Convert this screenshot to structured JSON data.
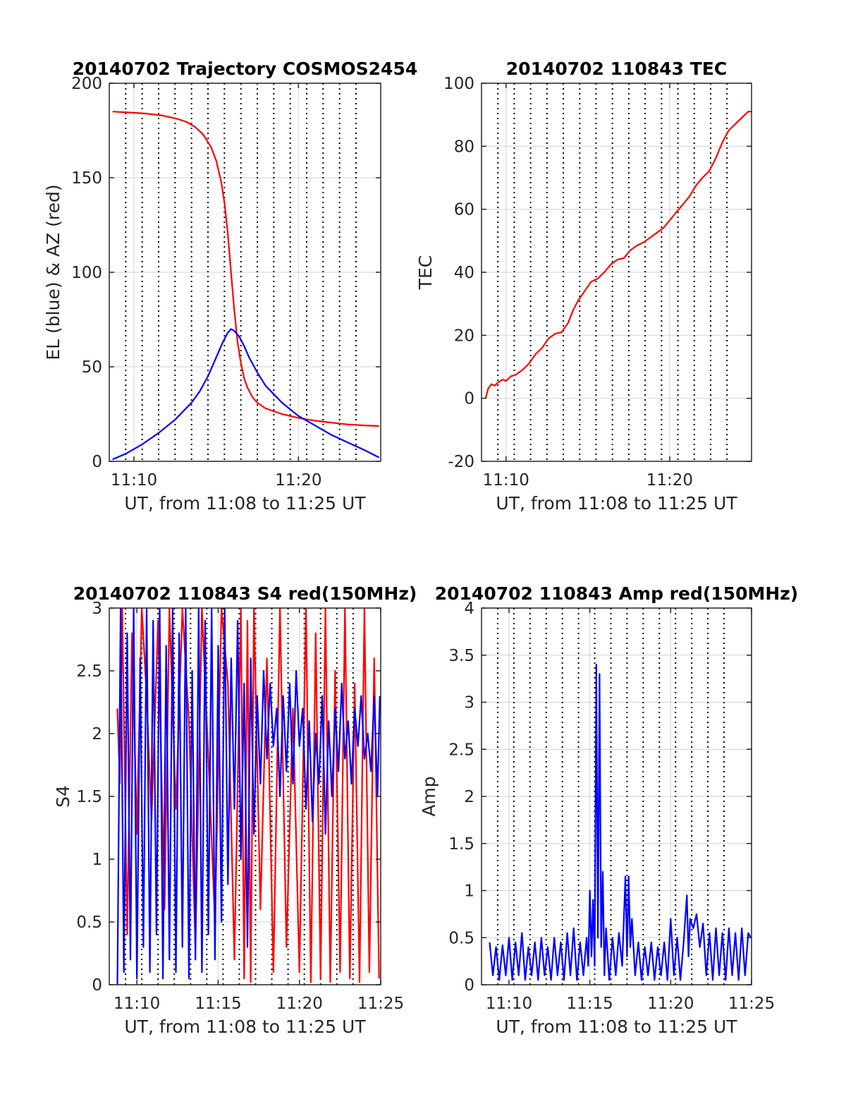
{
  "figure": {
    "colors": {
      "red": "#ff0000",
      "blue": "#0000ff",
      "grid": "#d9d9d9",
      "vline": "#000000",
      "axis": "#262626"
    }
  },
  "chart_data": [
    {
      "id": "trajectory",
      "type": "line",
      "title": "20140702 Trajectory COSMOS2454",
      "xlabel": "UT, from 11:08 to 11:25 UT",
      "ylabel": "EL (blue) & AZ (red)",
      "x_unit": "minutes after 11:00 UT",
      "xlim": [
        8.5,
        25.0
      ],
      "ylim": [
        0,
        200
      ],
      "xticks": [
        10,
        20
      ],
      "xtick_labels": [
        "11:10",
        "11:20"
      ],
      "yticks": [
        0,
        50,
        100,
        150,
        200
      ],
      "ytick_labels": [
        "0",
        "50",
        "100",
        "150",
        "200"
      ],
      "grid": true,
      "dotted_vlines": [
        9.5,
        10.5,
        11.5,
        12.5,
        13.5,
        14.5,
        15.5,
        16.5,
        17.5,
        18.5,
        19.5,
        20.5,
        21.5,
        22.5,
        23.5
      ],
      "series": [
        {
          "name": "AZ (red)",
          "color": "#ff0000",
          "x": [
            8.7,
            9.7,
            10.7,
            11.7,
            12.7,
            13.2,
            13.7,
            14.2,
            14.7,
            15.0,
            15.3,
            15.5,
            15.7,
            15.9,
            16.1,
            16.3,
            16.5,
            16.7,
            16.9,
            17.2,
            17.5,
            18.0,
            18.5,
            19.0,
            20.0,
            21.0,
            22.0,
            23.0,
            24.0,
            24.9
          ],
          "y": [
            185,
            184.5,
            184,
            183,
            181,
            179.5,
            177,
            173,
            166,
            159,
            148,
            137,
            121,
            100,
            80,
            63,
            52,
            44,
            39,
            34,
            31,
            28,
            26.5,
            25,
            23,
            21.5,
            20.5,
            19.5,
            19,
            18.7
          ]
        },
        {
          "name": "EL (blue)",
          "color": "#0000ff",
          "x": [
            8.7,
            9.5,
            10.5,
            11.5,
            12.5,
            13.5,
            14.0,
            14.5,
            15.0,
            15.4,
            15.7,
            15.9,
            16.1,
            16.4,
            16.7,
            17.0,
            17.5,
            18.0,
            19.0,
            20.0,
            21.0,
            22.0,
            23.0,
            24.0,
            24.9
          ],
          "y": [
            1,
            4,
            9,
            15,
            22,
            31,
            37,
            45,
            55,
            63,
            68,
            70,
            69,
            66,
            61,
            55,
            47,
            40,
            31,
            24,
            19,
            14,
            10,
            6,
            2
          ]
        }
      ]
    },
    {
      "id": "tec",
      "type": "line",
      "title": "20140702 110843 TEC",
      "xlabel": "UT, from 11:08 to 11:25 UT",
      "ylabel": "TEC",
      "x_unit": "minutes after 11:00 UT",
      "xlim": [
        8.5,
        25.0
      ],
      "ylim": [
        -20,
        100
      ],
      "xticks": [
        10,
        20
      ],
      "xtick_labels": [
        "11:10",
        "11:20"
      ],
      "yticks": [
        -20,
        0,
        20,
        40,
        60,
        80,
        100
      ],
      "ytick_labels": [
        "-20",
        "0",
        "20",
        "40",
        "60",
        "80",
        "100"
      ],
      "grid": true,
      "dotted_vlines": [
        9.5,
        10.5,
        11.5,
        12.5,
        13.5,
        14.5,
        15.5,
        16.5,
        17.5,
        18.5,
        19.5,
        20.5,
        21.5,
        22.5,
        23.5
      ],
      "series": [
        {
          "name": "TEC",
          "color": "#ff0000",
          "x": [
            8.75,
            8.9,
            9.1,
            9.3,
            9.5,
            9.8,
            10.0,
            10.3,
            10.6,
            11.0,
            11.4,
            11.8,
            12.2,
            12.6,
            13.0,
            13.4,
            13.8,
            14.1,
            14.4,
            14.8,
            15.2,
            15.6,
            16.0,
            16.4,
            16.8,
            17.2,
            17.6,
            18.0,
            18.4,
            18.8,
            19.2,
            19.6,
            20.0,
            20.4,
            20.8,
            21.2,
            21.6,
            22.0,
            22.4,
            22.8,
            23.2,
            23.6,
            24.0,
            24.4,
            24.8,
            25.0
          ],
          "y": [
            0,
            3,
            4.5,
            4,
            5,
            6,
            5.5,
            7,
            7.5,
            9,
            11,
            14,
            16,
            19,
            20.5,
            21,
            24,
            28,
            31,
            34,
            37,
            38,
            40,
            42.5,
            44,
            44.5,
            47,
            48.5,
            49.5,
            51,
            52.5,
            54,
            56.5,
            59,
            61.5,
            64,
            67.5,
            70,
            72,
            76,
            81,
            85,
            87,
            89,
            91,
            91
          ]
        }
      ]
    },
    {
      "id": "s4",
      "type": "line",
      "title": "20140702 110843 S4 red(150MHz)",
      "xlabel": "UT, from 11:08 to 11:25 UT",
      "ylabel": "S4",
      "x_unit": "minutes after 11:00 UT",
      "xlim": [
        8.3,
        25.0
      ],
      "ylim": [
        0,
        3
      ],
      "xticks": [
        10,
        15,
        20,
        25
      ],
      "xtick_labels": [
        "11:10",
        "11:15",
        "11:20",
        "11:25"
      ],
      "yticks": [
        0,
        0.5,
        1,
        1.5,
        2,
        2.5,
        3
      ],
      "ytick_labels": [
        "0",
        "0.5",
        "1",
        "1.5",
        "2",
        "2.5",
        "3"
      ],
      "grid": true,
      "dotted_vlines": [
        9.3,
        10.3,
        11.3,
        12.3,
        13.3,
        14.3,
        15.3,
        16.3,
        17.3,
        18.3,
        19.3,
        20.3,
        21.3,
        22.3,
        23.3
      ],
      "series": [
        {
          "name": "red",
          "color": "#ff0000",
          "x": [
            8.8,
            8.95,
            9.1,
            9.4,
            9.7,
            10.0,
            10.3,
            10.6,
            10.9,
            11.3,
            11.7,
            12.0,
            12.4,
            12.8,
            13.2,
            13.6,
            14.0,
            14.4,
            14.8,
            15.2,
            15.6,
            16.0,
            16.4,
            16.6,
            16.8,
            17.0,
            17.2,
            17.6,
            18.0,
            18.4,
            18.8,
            19.2,
            19.6,
            20.0,
            20.4,
            20.7,
            21.0,
            21.3,
            21.6,
            21.9,
            22.2,
            22.5,
            22.8,
            23.1,
            23.4,
            23.7,
            24.0,
            24.3,
            24.6,
            24.9
          ],
          "y": [
            2.2,
            1.6,
            3,
            0.4,
            2.8,
            1.2,
            3,
            2.3,
            1.3,
            2.9,
            0.6,
            3,
            1.4,
            3,
            2.1,
            0.3,
            3,
            1.8,
            0.5,
            3,
            2.4,
            0.2,
            3,
            0.05,
            2.9,
            0.02,
            3,
            0.6,
            2.6,
            0.1,
            3,
            0.3,
            2.2,
            0.1,
            3,
            0.02,
            2.8,
            0.05,
            3,
            0.02,
            2.5,
            0.1,
            3,
            0.05,
            2.4,
            0.02,
            3,
            0.1,
            2.6,
            0.05
          ]
        },
        {
          "name": "blue",
          "color": "#0000ff",
          "x": [
            8.8,
            9.0,
            9.2,
            9.4,
            9.6,
            9.8,
            10.0,
            10.2,
            10.4,
            10.6,
            10.8,
            11.0,
            11.2,
            11.4,
            11.6,
            11.8,
            12.0,
            12.2,
            12.4,
            12.6,
            12.8,
            13.0,
            13.2,
            13.4,
            13.6,
            13.8,
            14.0,
            14.2,
            14.4,
            14.6,
            14.8,
            15.0,
            15.2,
            15.4,
            15.6,
            15.8,
            16.0,
            16.2,
            16.4,
            16.6,
            16.8,
            17.0,
            17.2,
            17.4,
            17.6,
            17.8,
            18.0,
            18.2,
            18.4,
            18.6,
            18.8,
            19.0,
            19.2,
            19.4,
            19.6,
            19.8,
            20.0,
            20.2,
            20.4,
            20.6,
            20.8,
            21.0,
            21.2,
            21.4,
            21.6,
            21.8,
            22.0,
            22.2,
            22.4,
            22.6,
            22.8,
            23.0,
            23.2,
            23.4,
            23.6,
            23.8,
            24.0,
            24.2,
            24.4,
            24.6,
            24.8,
            24.95
          ],
          "y": [
            0,
            3,
            0.1,
            2.8,
            0.2,
            3,
            0.05,
            2.6,
            0.3,
            3,
            0.1,
            2.9,
            0.4,
            3,
            0.05,
            2.7,
            0.2,
            3,
            0.1,
            2.8,
            0.3,
            3,
            0.05,
            2.5,
            0.2,
            3,
            0.1,
            2.9,
            0.4,
            3,
            0.2,
            2.7,
            0.5,
            3,
            0.8,
            2.6,
            1.4,
            2.9,
            1.0,
            2.4,
            0.3,
            2.6,
            1.2,
            2.3,
            1.6,
            2.5,
            1.8,
            2.4,
            1.9,
            2.2,
            1.5,
            2.3,
            1.7,
            2.4,
            1.6,
            2.5,
            1.9,
            2.2,
            1.4,
            2.1,
            1.3,
            2.0,
            1.6,
            2.3,
            1.2,
            2.1,
            1.5,
            2.2,
            1.7,
            2.4,
            1.8,
            2.1,
            1.6,
            2.2,
            1.9,
            2.3,
            1.8,
            2.0,
            1.7,
            2.3,
            1.5,
            2.3
          ]
        }
      ]
    },
    {
      "id": "amp",
      "type": "line",
      "title": "20140702 110843 Amp red(150MHz)",
      "xlabel": "UT, from 11:08 to 11:25 UT",
      "ylabel": "Amp",
      "x_unit": "minutes after 11:00 UT",
      "xlim": [
        8.3,
        25.0
      ],
      "ylim": [
        0,
        4
      ],
      "xticks": [
        10,
        15,
        20,
        25
      ],
      "xtick_labels": [
        "11:10",
        "11:15",
        "11:20",
        "11:25"
      ],
      "yticks": [
        0,
        0.5,
        1,
        1.5,
        2,
        2.5,
        3,
        3.5,
        4
      ],
      "ytick_labels": [
        "0",
        "0.5",
        "1",
        "1.5",
        "2",
        "2.5",
        "3",
        "3.5",
        "4"
      ],
      "grid": true,
      "dotted_vlines": [
        9.3,
        10.3,
        11.3,
        12.3,
        13.3,
        14.3,
        15.3,
        16.3,
        17.3,
        18.3,
        19.3,
        20.3,
        21.3,
        22.3,
        23.3
      ],
      "series": [
        {
          "name": "Amp",
          "color": "#0000ff",
          "x": [
            8.8,
            9.0,
            9.2,
            9.4,
            9.6,
            9.8,
            10.0,
            10.2,
            10.4,
            10.6,
            10.8,
            11.0,
            11.2,
            11.4,
            11.6,
            11.8,
            12.0,
            12.2,
            12.4,
            12.6,
            12.8,
            13.0,
            13.2,
            13.4,
            13.6,
            13.8,
            14.0,
            14.2,
            14.4,
            14.6,
            14.8,
            14.9,
            15.0,
            15.1,
            15.2,
            15.3,
            15.4,
            15.5,
            15.6,
            15.7,
            15.8,
            15.9,
            16.0,
            16.2,
            16.4,
            16.6,
            16.8,
            17.0,
            17.2,
            17.3,
            17.4,
            17.5,
            17.6,
            17.8,
            18.0,
            18.2,
            18.4,
            18.6,
            18.8,
            19.0,
            19.2,
            19.4,
            19.6,
            19.8,
            20.0,
            20.2,
            20.4,
            20.6,
            20.8,
            21.0,
            21.1,
            21.2,
            21.4,
            21.6,
            21.8,
            22.0,
            22.2,
            22.4,
            22.6,
            22.8,
            23.0,
            23.2,
            23.4,
            23.6,
            23.8,
            24.0,
            24.2,
            24.4,
            24.6,
            24.8,
            24.95
          ],
          "y": [
            0.45,
            0.1,
            0.4,
            0.05,
            0.42,
            0.1,
            0.5,
            0.05,
            0.45,
            0.1,
            0.55,
            0.05,
            0.4,
            0.1,
            0.45,
            0.05,
            0.5,
            0.1,
            0.4,
            0.05,
            0.5,
            0.1,
            0.45,
            0.05,
            0.55,
            0.1,
            0.6,
            0.05,
            0.45,
            0.1,
            0.5,
            0.2,
            1.0,
            0.3,
            0.9,
            0.2,
            3.4,
            0.5,
            3.3,
            0.4,
            1.2,
            0.1,
            0.6,
            0.05,
            0.5,
            0.1,
            0.55,
            0.2,
            1.15,
            0.3,
            1.15,
            0.4,
            0.7,
            0.1,
            0.45,
            0.05,
            0.4,
            0.1,
            0.45,
            0.05,
            0.4,
            0.1,
            0.45,
            0.05,
            0.7,
            0.1,
            0.5,
            0.05,
            0.45,
            0.95,
            0.3,
            0.7,
            0.6,
            0.75,
            0.4,
            0.65,
            0.1,
            0.55,
            0.05,
            0.6,
            0.1,
            0.55,
            0.05,
            0.6,
            0.1,
            0.55,
            0.05,
            0.6,
            0.1,
            0.55,
            0.5
          ]
        }
      ]
    }
  ]
}
